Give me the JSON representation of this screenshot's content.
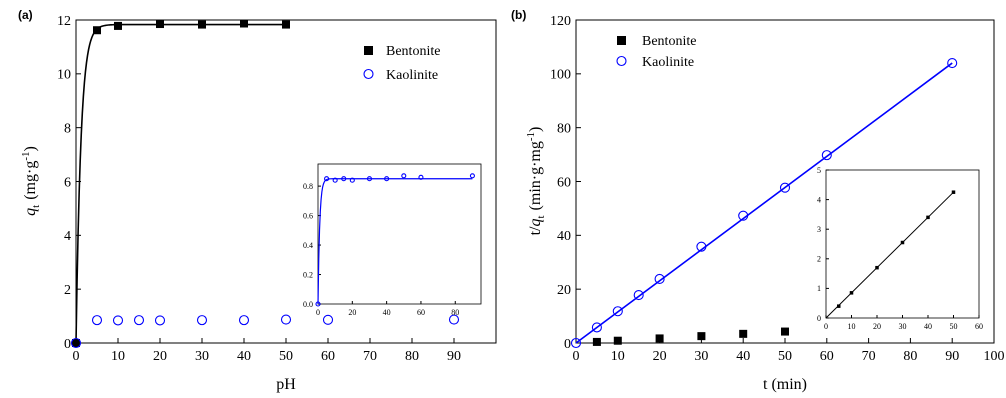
{
  "chart_data": [
    {
      "panel_label": "(a)",
      "type": "scatter",
      "xlabel": "pH",
      "ylabel_main": "q",
      "ylabel_sub": "t",
      "ylabel_units": "(mg·g",
      "ylabel_sup": "-1",
      "ylabel_close": ")",
      "xlim": [
        0,
        100
      ],
      "ylim": [
        0,
        12
      ],
      "xticks": [
        "0",
        "10",
        "20",
        "30",
        "40",
        "50",
        "60",
        "70",
        "80",
        "90"
      ],
      "yticks": [
        "0",
        "2",
        "4",
        "6",
        "8",
        "10",
        "12"
      ],
      "legend": "top-right",
      "series": [
        {
          "name": "Bentonite",
          "marker": "filled-square",
          "color": "#000000",
          "x": [
            0,
            5,
            10,
            20,
            30,
            40,
            50
          ],
          "y": [
            0,
            11.62,
            11.78,
            11.85,
            11.83,
            11.87,
            11.83
          ]
        },
        {
          "name": "Kaolinite",
          "marker": "open-circle",
          "color": "#0000ff",
          "x": [
            0,
            5,
            10,
            15,
            20,
            30,
            40,
            50,
            60,
            90
          ],
          "y": [
            0,
            0.85,
            0.84,
            0.85,
            0.84,
            0.85,
            0.85,
            0.87,
            0.86,
            0.87
          ]
        }
      ],
      "fit_curve": {
        "color": "#000000",
        "qe": 11.83,
        "k": 0.85
      },
      "inset": {
        "xlim": [
          0,
          95
        ],
        "ylim": [
          0,
          0.95
        ],
        "xticks": [
          "0",
          "20",
          "40",
          "60",
          "80"
        ],
        "yticks": [
          "0.0",
          "0.2",
          "0.4",
          "0.6",
          "0.8"
        ],
        "points": {
          "x": [
            0,
            5,
            10,
            15,
            20,
            30,
            40,
            50,
            60,
            90
          ],
          "y": [
            0,
            0.85,
            0.84,
            0.85,
            0.84,
            0.85,
            0.85,
            0.87,
            0.86,
            0.87
          ]
        },
        "fit_curve": {
          "color": "#0000ff",
          "qe": 0.85,
          "k": 1.0
        }
      }
    },
    {
      "panel_label": "(b)",
      "type": "scatter",
      "xlabel": "t (min)",
      "ylabel_pre": "t/",
      "ylabel_main": "q",
      "ylabel_sub": "t",
      "ylabel_units": "(min·g·mg",
      "ylabel_sup": "-1",
      "ylabel_close": ")",
      "xlim": [
        0,
        100
      ],
      "ylim": [
        0,
        120
      ],
      "xticks": [
        "0",
        "10",
        "20",
        "30",
        "40",
        "50",
        "60",
        "70",
        "80",
        "90",
        "100"
      ],
      "yticks": [
        "0",
        "20",
        "40",
        "60",
        "80",
        "100",
        "120"
      ],
      "legend": "top-left",
      "series": [
        {
          "name": "Bentonite",
          "marker": "filled-square",
          "color": "#000000",
          "x": [
            5,
            10,
            20,
            30,
            40,
            50
          ],
          "y": [
            0.4,
            0.85,
            1.7,
            2.55,
            3.4,
            4.25
          ]
        },
        {
          "name": "Kaolinite",
          "marker": "open-circle",
          "color": "#0000ff",
          "x": [
            0,
            5,
            10,
            15,
            20,
            30,
            40,
            50,
            60,
            90
          ],
          "y": [
            0,
            5.8,
            11.8,
            17.8,
            23.8,
            35.8,
            47.3,
            57.7,
            69.8,
            104
          ]
        }
      ],
      "fit_line": {
        "color": "#0000ff",
        "x": [
          0,
          90
        ],
        "y": [
          0,
          104
        ]
      },
      "inset": {
        "xlim": [
          0,
          60
        ],
        "ylim": [
          0,
          5
        ],
        "xticks": [
          "0",
          "10",
          "20",
          "30",
          "40",
          "50",
          "60"
        ],
        "yticks": [
          "0",
          "1",
          "2",
          "3",
          "4",
          "5"
        ],
        "points": {
          "x": [
            5,
            10,
            20,
            30,
            40,
            50
          ],
          "y": [
            0.4,
            0.85,
            1.7,
            2.55,
            3.4,
            4.25
          ]
        },
        "fit_line": {
          "color": "#000000",
          "x": [
            0,
            50
          ],
          "y": [
            0,
            4.25
          ]
        }
      }
    }
  ]
}
